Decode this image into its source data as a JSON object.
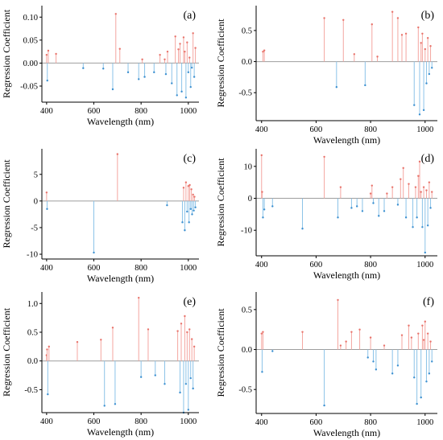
{
  "colors": {
    "positive": "#f4a6a0",
    "negative": "#8cc3e8",
    "positive_marker": "#e8736b",
    "negative_marker": "#3a8fd0",
    "zero_line": "#9e9e9e",
    "axis": "#000000"
  },
  "chart_data": [
    {
      "type": "stem",
      "panel_label": "(a)",
      "xlabel": "Wavelength (nm)",
      "ylabel": "Regression Coefficient",
      "xlim": [
        380,
        1045
      ],
      "xticks": [
        400,
        600,
        800,
        1000
      ],
      "ylim": [
        -0.085,
        0.125
      ],
      "yticks": [
        -0.05,
        0.0,
        0.05,
        0.1
      ],
      "ytick_labels": [
        "-0.05",
        "0.00",
        "0.05",
        "0.10"
      ],
      "x": [
        400,
        403,
        407,
        440,
        555,
        640,
        680,
        693,
        710,
        745,
        790,
        805,
        815,
        855,
        880,
        900,
        905,
        912,
        930,
        945,
        952,
        958,
        965,
        972,
        980,
        985,
        990,
        995,
        1000,
        1005,
        1010,
        1015,
        1020,
        1025,
        1030
      ],
      "values": [
        0.018,
        -0.038,
        0.027,
        0.02,
        -0.011,
        -0.012,
        -0.057,
        0.107,
        0.031,
        -0.02,
        -0.035,
        0.008,
        -0.03,
        -0.02,
        0.018,
        0.008,
        -0.024,
        0.025,
        -0.044,
        0.058,
        -0.07,
        0.03,
        0.042,
        -0.062,
        0.056,
        0.025,
        -0.075,
        0.045,
        -0.02,
        0.012,
        -0.052,
        -0.01,
        0.065,
        -0.03,
        0.033
      ]
    },
    {
      "type": "stem",
      "panel_label": "(b)",
      "xlabel": "Wavelength (nm)",
      "ylabel": "Regression Coefficient",
      "xlim": [
        380,
        1045
      ],
      "xticks": [
        400,
        600,
        800,
        1000
      ],
      "ylim": [
        -0.95,
        0.9
      ],
      "yticks": [
        -0.5,
        0.0,
        0.5
      ],
      "ytick_labels": [
        "-0.5",
        "0.0",
        "0.5"
      ],
      "x": [
        405,
        410,
        630,
        675,
        700,
        740,
        780,
        805,
        825,
        880,
        900,
        915,
        930,
        960,
        975,
        980,
        985,
        990,
        995,
        1000,
        1005,
        1010,
        1015,
        1020,
        1025
      ],
      "values": [
        0.16,
        0.18,
        0.7,
        -0.41,
        0.67,
        0.12,
        -0.38,
        0.6,
        0.08,
        0.8,
        0.7,
        0.43,
        0.45,
        -0.7,
        0.55,
        -0.85,
        0.3,
        0.45,
        -0.78,
        0.2,
        -0.35,
        0.38,
        -0.2,
        0.25,
        -0.1
      ]
    },
    {
      "type": "stem",
      "panel_label": "(c)",
      "xlabel": "Wavelength (nm)",
      "ylabel": "Regression Coefficient",
      "xlim": [
        380,
        1045
      ],
      "xticks": [
        400,
        600,
        800,
        1000
      ],
      "ylim": [
        -10.9,
        9.8
      ],
      "yticks": [
        -10,
        -5,
        0,
        5
      ],
      "ytick_labels": [
        "-10",
        "-5",
        "0",
        "5"
      ],
      "x": [
        400,
        402,
        600,
        700,
        910,
        975,
        980,
        985,
        990,
        995,
        1000,
        1003,
        1006,
        1010,
        1013,
        1016,
        1020,
        1023,
        1026,
        1030
      ],
      "values": [
        1.6,
        -1.5,
        -9.7,
        8.8,
        -0.8,
        -4.0,
        2.5,
        -5.5,
        3.5,
        -2.0,
        2.8,
        -4.0,
        3.0,
        -1.5,
        2.2,
        -2.5,
        1.2,
        -1.8,
        0.8,
        -1.2
      ]
    },
    {
      "type": "stem",
      "panel_label": "(d)",
      "xlabel": "Wavelength (nm)",
      "ylabel": "Regression Coefficient",
      "xlim": [
        380,
        1045
      ],
      "xticks": [
        400,
        600,
        800,
        1000
      ],
      "ylim": [
        -18,
        15.5
      ],
      "yticks": [
        -10,
        0,
        10
      ],
      "ytick_labels": [
        "-10",
        "0",
        "10"
      ],
      "x": [
        400,
        402,
        405,
        410,
        440,
        550,
        630,
        680,
        690,
        730,
        750,
        770,
        800,
        805,
        810,
        830,
        850,
        860,
        880,
        900,
        910,
        920,
        930,
        940,
        955,
        965,
        970,
        975,
        980,
        985,
        990,
        995,
        1000,
        1005,
        1010,
        1015,
        1020,
        1025
      ],
      "values": [
        13.5,
        2.0,
        -6.0,
        -3.5,
        -2.5,
        -9.5,
        13.0,
        -6.0,
        3.5,
        -3.0,
        -2.5,
        -4.0,
        1.5,
        4.0,
        -1.5,
        -5.5,
        -4.0,
        1.5,
        3.5,
        -2.0,
        6.0,
        9.5,
        -6.0,
        4.5,
        -9.0,
        3.5,
        -6.0,
        7.0,
        11.5,
        2.0,
        -9.0,
        3.5,
        -17.0,
        2.5,
        -8.5,
        5.0,
        -3.0,
        2.0
      ]
    },
    {
      "type": "stem",
      "panel_label": "(e)",
      "xlabel": "Wavelength (nm)",
      "ylabel": "Regression Coefficient",
      "xlim": [
        380,
        1045
      ],
      "xticks": [
        400,
        600,
        800,
        1000
      ],
      "ylim": [
        -0.9,
        1.2
      ],
      "yticks": [
        -0.5,
        0.0,
        0.5,
        1.0
      ],
      "ytick_labels": [
        "-0.5",
        "0.0",
        "0.5",
        "1.0"
      ],
      "x": [
        400,
        402,
        405,
        410,
        530,
        630,
        645,
        680,
        690,
        790,
        800,
        830,
        860,
        900,
        955,
        965,
        970,
        980,
        985,
        990,
        995,
        1000,
        1005,
        1010,
        1015,
        1020,
        1025
      ],
      "values": [
        0.1,
        0.2,
        -0.58,
        0.25,
        0.33,
        0.37,
        -0.78,
        0.58,
        -0.75,
        1.1,
        -0.28,
        0.55,
        -0.25,
        -0.4,
        0.52,
        -0.55,
        0.65,
        -0.9,
        0.78,
        -0.4,
        0.5,
        -0.85,
        0.55,
        -0.3,
        0.38,
        -0.48,
        0.25
      ]
    },
    {
      "type": "stem",
      "panel_label": "(f)",
      "xlabel": "Wavelength (nm)",
      "ylabel": "Regression Coefficient",
      "xlim": [
        380,
        1045
      ],
      "xticks": [
        400,
        600,
        800,
        1000
      ],
      "ylim": [
        -0.8,
        0.72
      ],
      "yticks": [
        -0.5,
        0.0,
        0.5
      ],
      "ytick_labels": [
        "-0.5",
        "0.0",
        "0.5"
      ],
      "x": [
        400,
        402,
        405,
        440,
        550,
        630,
        680,
        690,
        710,
        730,
        760,
        790,
        800,
        810,
        820,
        850,
        880,
        900,
        915,
        940,
        950,
        960,
        970,
        975,
        985,
        990,
        995,
        1000,
        1005,
        1010,
        1015,
        1020,
        1025
      ],
      "values": [
        0.2,
        -0.28,
        0.22,
        -0.02,
        0.22,
        -0.7,
        0.62,
        0.05,
        0.1,
        0.22,
        0.25,
        -0.1,
        0.15,
        -0.15,
        -0.25,
        0.05,
        -0.3,
        -0.2,
        0.18,
        0.3,
        0.15,
        -0.35,
        -0.68,
        0.2,
        -0.6,
        0.3,
        0.12,
        0.35,
        -0.4,
        0.2,
        -0.3,
        0.1,
        -0.15
      ]
    }
  ]
}
